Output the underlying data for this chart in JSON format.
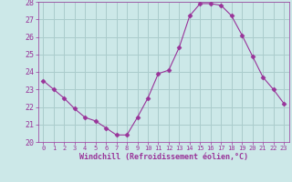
{
  "x": [
    0,
    1,
    2,
    3,
    4,
    5,
    6,
    7,
    8,
    9,
    10,
    11,
    12,
    13,
    14,
    15,
    16,
    17,
    18,
    19,
    20,
    21,
    22,
    23
  ],
  "y": [
    23.5,
    23.0,
    22.5,
    21.9,
    21.4,
    21.2,
    20.8,
    20.4,
    20.4,
    21.4,
    22.5,
    23.9,
    24.1,
    25.4,
    27.2,
    27.9,
    27.9,
    27.8,
    27.2,
    26.1,
    24.9,
    23.7,
    23.0,
    22.2
  ],
  "line_color": "#993399",
  "marker": "D",
  "marker_size": 2.5,
  "bg_color": "#cce8e8",
  "grid_color": "#aacccc",
  "xlabel": "Windchill (Refroidissement éolien,°C)",
  "xlabel_color": "#993399",
  "tick_color": "#993399",
  "label_color": "#993399",
  "ylim": [
    20,
    28
  ],
  "xlim": [
    -0.5,
    23.5
  ],
  "yticks": [
    20,
    21,
    22,
    23,
    24,
    25,
    26,
    27,
    28
  ],
  "xticks": [
    0,
    1,
    2,
    3,
    4,
    5,
    6,
    7,
    8,
    9,
    10,
    11,
    12,
    13,
    14,
    15,
    16,
    17,
    18,
    19,
    20,
    21,
    22,
    23
  ]
}
